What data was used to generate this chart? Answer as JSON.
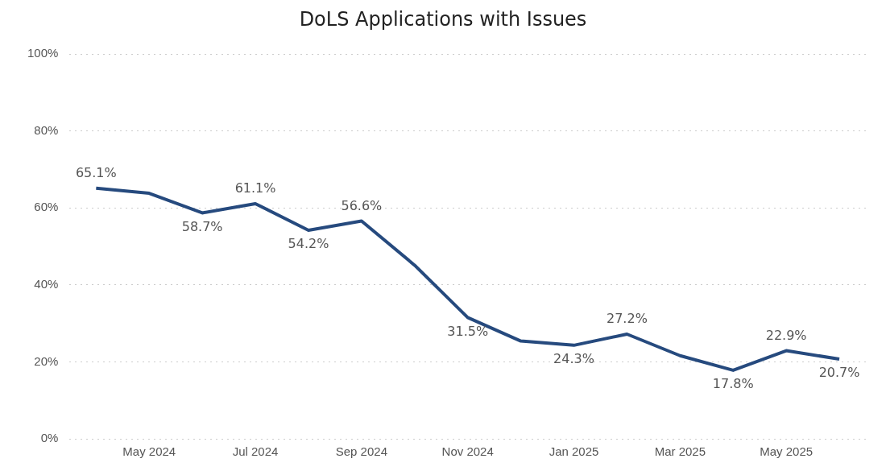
{
  "chart_data": {
    "type": "line",
    "title": "DoLS Applications with Issues",
    "categories": [
      null,
      "May 2024",
      null,
      "Jul 2024",
      null,
      "Sep 2024",
      null,
      "Nov 2024",
      null,
      "Jan 2025",
      null,
      "Mar 2025",
      null,
      "May 2025",
      null
    ],
    "series": [
      {
        "color": "#264a7e",
        "values": [
          65.1,
          63.8,
          58.7,
          61.1,
          54.2,
          56.6,
          45.1,
          31.5,
          25.4,
          24.3,
          27.2,
          21.6,
          17.8,
          22.9,
          20.7
        ],
        "value_labels": [
          "65.1%",
          null,
          "58.7%",
          "61.1%",
          "54.2%",
          "56.6%",
          null,
          "31.5%",
          null,
          "24.3%",
          "27.2%",
          null,
          "17.8%",
          "22.9%",
          "20.7%"
        ]
      }
    ],
    "ylim": [
      0,
      100
    ],
    "yticks": [
      {
        "value": 0,
        "label": "0%"
      },
      {
        "value": 20,
        "label": "20%"
      },
      {
        "value": 40,
        "label": "40%"
      },
      {
        "value": 60,
        "label": "60%"
      },
      {
        "value": 80,
        "label": "80%"
      },
      {
        "value": 100,
        "label": "100%"
      }
    ],
    "grid": "y",
    "marker": "none",
    "line_style": "solid"
  }
}
